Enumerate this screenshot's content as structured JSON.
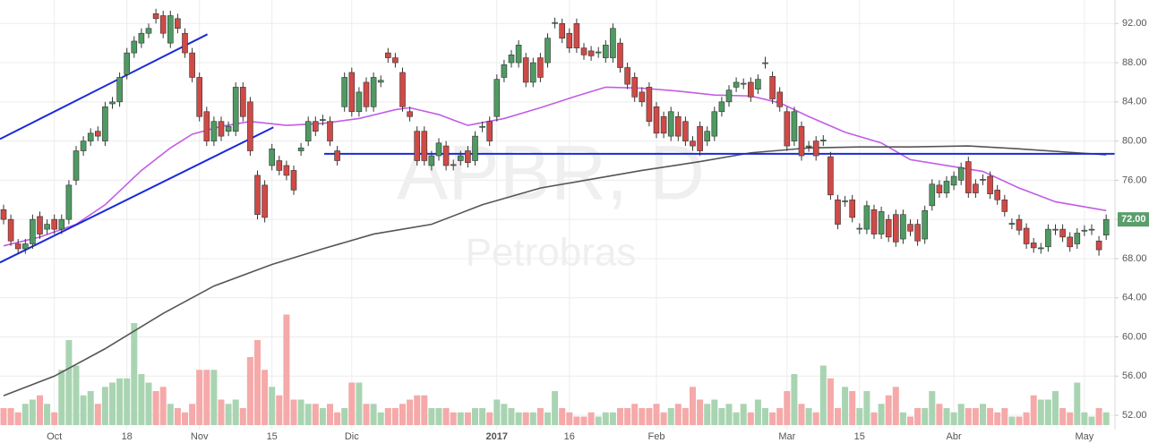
{
  "chart_data": {
    "type": "candlestick",
    "watermark": {
      "symbol": "APBR, D",
      "name": "Petrobras"
    },
    "categories": [
      null,
      null,
      null,
      null,
      null,
      null,
      null,
      "Oct",
      null,
      null,
      null,
      null,
      null,
      null,
      null,
      null,
      null,
      "18",
      null,
      null,
      null,
      null,
      null,
      null,
      null,
      null,
      null,
      "Nov",
      null,
      null,
      null,
      null,
      null,
      null,
      null,
      null,
      null,
      "15",
      null,
      null,
      null,
      null,
      null,
      null,
      null,
      null,
      null,
      null,
      "Dic",
      null,
      null,
      null,
      null,
      null,
      null,
      null,
      null,
      null,
      null,
      null,
      null,
      null,
      null,
      null,
      null,
      null,
      null,
      null,
      "2017",
      null,
      null,
      null,
      null,
      null,
      null,
      null,
      null,
      null,
      "16",
      null,
      null,
      null,
      null,
      null,
      null,
      null,
      null,
      null,
      null,
      null,
      "Feb",
      null,
      null,
      null,
      null,
      null,
      null,
      null,
      null,
      null,
      null,
      null,
      null,
      null,
      null,
      null,
      null,
      null,
      "Mar",
      null,
      null,
      null,
      null,
      null,
      null,
      null,
      null,
      null,
      "15",
      null,
      null,
      null,
      null,
      null,
      null,
      null,
      null,
      null,
      null,
      null,
      null,
      "Abr",
      null,
      null,
      null,
      null,
      null,
      null,
      null,
      null,
      null,
      null,
      null,
      null,
      null,
      null,
      null,
      null,
      null,
      "May",
      null,
      null,
      null
    ],
    "open": [
      73,
      72,
      69.5,
      69,
      69.5,
      72.3,
      71,
      72,
      71,
      72,
      76,
      79,
      80,
      81,
      80,
      83.8,
      84,
      86.8,
      89,
      90,
      91,
      93,
      92.8,
      90,
      92.5,
      91,
      89,
      86.5,
      83,
      80,
      82,
      81,
      81,
      85.5,
      84,
      76.5,
      75.5,
      77.5,
      78,
      77.5,
      77,
      79,
      80,
      82,
      82.1,
      82,
      79,
      83.5,
      87,
      83,
      86,
      83.5,
      86,
      89,
      88.5,
      87,
      83,
      81,
      81,
      77.5,
      78.5,
      79.5,
      77.6,
      78,
      79,
      78,
      81.4,
      82,
      82.5,
      86.5,
      88,
      88,
      88.5,
      86,
      88.5,
      88,
      92,
      92,
      91,
      92,
      89.5,
      89.2,
      89,
      88.5,
      88.5,
      90,
      87.5,
      86.5,
      85,
      85.5,
      83.5,
      82.5,
      80.5,
      82.5,
      82,
      80,
      81.5,
      80,
      80.5,
      83,
      84,
      85.5,
      85.8,
      86,
      85.3,
      87.9,
      86.6,
      85,
      83,
      80,
      81.5,
      79.4,
      80,
      80,
      78.4,
      74,
      73.8,
      74,
      71,
      71,
      73,
      70.5,
      72,
      72.5,
      70,
      71.5,
      71.5,
      70,
      73.4,
      75.5,
      74.7,
      75.5,
      76,
      77.9,
      75.6,
      76,
      76.4,
      75,
      74,
      71.5,
      72,
      71.1,
      69.6,
      69,
      69.2,
      70.9,
      71,
      70.2,
      69.5,
      70.8,
      70.9,
      69.8,
      70.4
    ],
    "high": [
      73.5,
      72.5,
      70,
      70,
      72.5,
      72.8,
      72,
      72.5,
      72.5,
      76,
      79.5,
      80.5,
      81.3,
      81.5,
      84,
      84.5,
      87,
      89.5,
      90.7,
      91.5,
      92,
      93.5,
      93.3,
      93.3,
      93,
      91.5,
      89.5,
      87,
      83.5,
      82.5,
      82.5,
      82,
      86,
      86,
      84.5,
      77,
      76,
      79.7,
      78.5,
      78,
      77.5,
      79.8,
      82.5,
      82.5,
      82.7,
      82.5,
      79.5,
      87,
      87.5,
      85.5,
      86.5,
      87,
      86.7,
      89.5,
      89,
      87.5,
      83.5,
      81.5,
      81.5,
      79,
      80.3,
      80,
      78.1,
      79,
      79.5,
      81,
      82,
      82.5,
      86.8,
      88.3,
      89.3,
      90.3,
      89,
      88.5,
      89,
      91,
      92.6,
      92.5,
      91.5,
      92.5,
      90,
      89.7,
      89.6,
      90.3,
      92,
      90.5,
      88,
      87,
      85.5,
      86,
      84,
      83,
      83.5,
      83,
      82.5,
      80.5,
      82,
      81.5,
      83.5,
      84.5,
      85.7,
      86.5,
      86.4,
      86.5,
      86.8,
      88.6,
      87.1,
      85.5,
      83.5,
      83.5,
      82,
      80,
      80.5,
      80.6,
      78.9,
      74.5,
      74.4,
      74.5,
      71.6,
      73.9,
      73.5,
      73.3,
      72.5,
      73,
      73,
      72,
      72,
      73.4,
      76.1,
      76,
      76.4,
      76.9,
      77.8,
      78.4,
      76.1,
      76.6,
      76.9,
      75.5,
      74.5,
      72.1,
      72.5,
      71.6,
      70.1,
      69.6,
      71.5,
      71.5,
      71.5,
      70.7,
      71.1,
      71.4,
      71.5,
      70.3,
      72.5
    ],
    "low": [
      71.5,
      69.3,
      68.5,
      68.5,
      69,
      70,
      70.5,
      70.5,
      70.5,
      71.5,
      75.5,
      78.5,
      79.5,
      80,
      79.5,
      83.3,
      83.5,
      86.3,
      88.5,
      89.5,
      90.5,
      92,
      90.5,
      89.5,
      91,
      88.5,
      86,
      82,
      79.5,
      79.5,
      80,
      80.5,
      80.5,
      82,
      78.5,
      72,
      71.7,
      77,
      76.5,
      76,
      74.5,
      78.5,
      79.5,
      80.5,
      81.6,
      79.5,
      77.5,
      83,
      82.5,
      82.5,
      83,
      83,
      85.5,
      88,
      87.5,
      83,
      82,
      77.5,
      77.5,
      77,
      78,
      77,
      77,
      77.5,
      77.3,
      77.5,
      80.9,
      79.5,
      82,
      86,
      87.5,
      87.5,
      85.5,
      85.5,
      86,
      87.5,
      91.5,
      90,
      89,
      89,
      88.3,
      88.2,
      88.5,
      88,
      88,
      87,
      85.3,
      84,
      83.5,
      81.5,
      80.3,
      80.3,
      80,
      80,
      79.5,
      79,
      78.5,
      79.5,
      80,
      82.5,
      83.5,
      85,
      85.3,
      84,
      84.8,
      87.4,
      83.8,
      83,
      79,
      79.5,
      78,
      78.9,
      78,
      79.5,
      74,
      71,
      73.3,
      71.7,
      70.5,
      70.5,
      70,
      70,
      69.7,
      69.2,
      69.5,
      70.3,
      69.3,
      69.5,
      72.9,
      74.2,
      74.2,
      75,
      75.5,
      74.2,
      74.2,
      75.5,
      74.1,
      73.5,
      72.3,
      71,
      70.4,
      69,
      68.6,
      68.5,
      68.7,
      70.4,
      69.7,
      68.7,
      69,
      70.3,
      70.4,
      68.3,
      69.9
    ],
    "close": [
      72,
      69.8,
      69,
      69.5,
      72,
      70.5,
      71.5,
      71,
      72,
      75.5,
      79,
      80,
      80.8,
      80.5,
      83.5,
      84,
      86.5,
      89,
      90.2,
      91,
      91.5,
      92.5,
      91,
      92.8,
      91.5,
      89,
      86.5,
      82.5,
      80,
      82,
      80.5,
      81.5,
      85.5,
      82.5,
      79,
      72.5,
      72.2,
      79.2,
      77,
      76.5,
      75,
      79.3,
      82,
      81,
      82.2,
      80,
      78,
      86.5,
      83,
      85,
      83.5,
      86.5,
      86.2,
      88.5,
      88,
      83.5,
      82.5,
      78,
      78,
      78.5,
      79.8,
      77.5,
      77.5,
      78.5,
      77.8,
      80.5,
      81.5,
      80,
      86.3,
      87.8,
      88.8,
      89.8,
      86,
      88,
      86.5,
      90.5,
      92.1,
      90.5,
      89.5,
      89.5,
      88.8,
      88.7,
      89.1,
      89.8,
      91.5,
      87.5,
      85.8,
      84.5,
      84,
      82,
      80.8,
      80.8,
      83,
      80.5,
      80,
      79.5,
      79,
      81,
      83,
      84,
      85.2,
      86,
      85.9,
      84.5,
      86.3,
      88,
      84.3,
      83.5,
      79.5,
      83,
      78.5,
      79.5,
      78.5,
      80.1,
      74.5,
      71.5,
      73.9,
      72.2,
      71.1,
      73.4,
      70.5,
      72.8,
      70.2,
      69.7,
      72.5,
      70.8,
      69.8,
      72.9,
      75.6,
      74.7,
      75.9,
      76.4,
      77.3,
      74.7,
      74.7,
      76.1,
      74.6,
      74,
      72.8,
      71.6,
      70.9,
      69.5,
      69.1,
      69.1,
      71,
      71,
      70.2,
      69.2,
      70.6,
      70.9,
      71,
      68.9,
      72
    ],
    "volume": [
      4,
      4,
      3,
      5,
      6,
      7,
      5,
      3,
      13,
      20,
      14,
      7,
      8,
      5,
      9,
      10,
      11,
      11,
      24,
      12,
      10,
      8,
      9,
      5,
      4,
      3,
      5,
      13,
      13,
      13,
      6,
      5,
      6,
      4,
      16,
      20,
      13,
      9,
      7,
      26,
      6,
      6,
      5,
      5,
      4,
      5,
      3,
      4,
      10,
      10,
      5,
      5,
      3,
      4,
      4,
      5,
      6,
      7,
      7,
      4,
      4,
      4,
      3,
      3,
      3,
      4,
      4,
      3,
      6,
      5,
      4,
      3,
      3,
      3,
      4,
      3,
      8,
      4,
      3,
      2,
      2,
      3,
      2,
      3,
      3,
      4,
      4,
      5,
      4,
      4,
      5,
      3,
      4,
      5,
      4,
      9,
      6,
      5,
      6,
      4,
      5,
      3,
      5,
      3,
      6,
      4,
      3,
      4,
      8,
      12,
      5,
      4,
      3,
      14,
      11,
      4,
      9,
      8,
      4,
      8,
      3,
      5,
      7,
      9,
      3,
      2,
      4,
      4,
      8,
      5,
      4,
      3,
      5,
      4,
      4,
      5,
      4,
      3,
      4,
      2,
      2,
      3,
      7,
      6,
      6,
      8,
      4,
      3,
      10,
      3,
      2,
      4,
      3
    ],
    "colors": {
      "up": "#4f9a62",
      "down": "#cf4a47",
      "up_volume": "#a9d4b2",
      "down_volume": "#f5a9a9"
    },
    "ylim": [
      51,
      94.4
    ],
    "yticks": [
      {
        "value": 52,
        "label": "52.00"
      },
      {
        "value": 56,
        "label": "56.00"
      },
      {
        "value": 60,
        "label": "60.00"
      },
      {
        "value": 64,
        "label": "64.00"
      },
      {
        "value": 68,
        "label": "68.00"
      },
      {
        "value": 72,
        "label": "72.00"
      },
      {
        "value": 76,
        "label": "76.00"
      },
      {
        "value": 80,
        "label": "80.00"
      },
      {
        "value": 84,
        "label": "84.00"
      },
      {
        "value": 88,
        "label": "88.00"
      },
      {
        "value": 92,
        "label": "92.00"
      }
    ],
    "y2lim": [
      0,
      100
    ],
    "grid": true,
    "overlays": [
      {
        "color": "#c35ce6",
        "x": [
          0,
          5,
          10,
          14,
          19,
          23,
          26,
          30,
          34,
          39,
          44,
          49,
          54,
          56,
          60,
          64,
          69,
          74,
          79,
          83,
          88,
          93,
          98,
          103,
          107,
          111,
          116,
          121,
          125,
          130,
          135,
          140,
          145,
          152
        ],
        "values": [
          69.3,
          70.2,
          71.5,
          73.5,
          77,
          79.3,
          80.7,
          81.5,
          82,
          81.6,
          81.8,
          82.3,
          83.2,
          83.4,
          82.7,
          81.6,
          82.3,
          83.4,
          84.6,
          85.5,
          85.4,
          85.1,
          84.7,
          84.6,
          83.9,
          82.5,
          80.9,
          79.8,
          78.1,
          77.5,
          76.9,
          75.2,
          73.8,
          72.9
        ]
      },
      {
        "color": "#555555",
        "x": [
          0,
          7,
          14,
          22,
          29,
          37,
          44,
          51,
          59,
          66,
          74,
          81,
          88,
          96,
          103,
          111,
          118,
          125,
          133,
          140,
          148,
          152
        ],
        "values": [
          54,
          56,
          58.8,
          62.4,
          65.2,
          67.4,
          69,
          70.5,
          71.5,
          73.5,
          75.2,
          76.1,
          77,
          77.9,
          78.8,
          79.3,
          79.4,
          79.4,
          79.5,
          79.2,
          78.8,
          78.6
        ]
      }
    ],
    "trendlines": [
      {
        "color": "#1a2bd8",
        "x": [
          -0.5,
          28.1
        ],
        "values": [
          80.2,
          90.9
        ]
      },
      {
        "color": "#1a2bd8",
        "x": [
          -0.5,
          37.2
        ],
        "values": [
          67.6,
          81.4
        ]
      },
      {
        "color": "#1a2bd8",
        "x": [
          44.2,
          153.2
        ],
        "values": [
          78.7,
          78.7
        ]
      }
    ],
    "last_price": {
      "value": 72,
      "label": "72.00",
      "color": "#5a9e6a"
    }
  }
}
